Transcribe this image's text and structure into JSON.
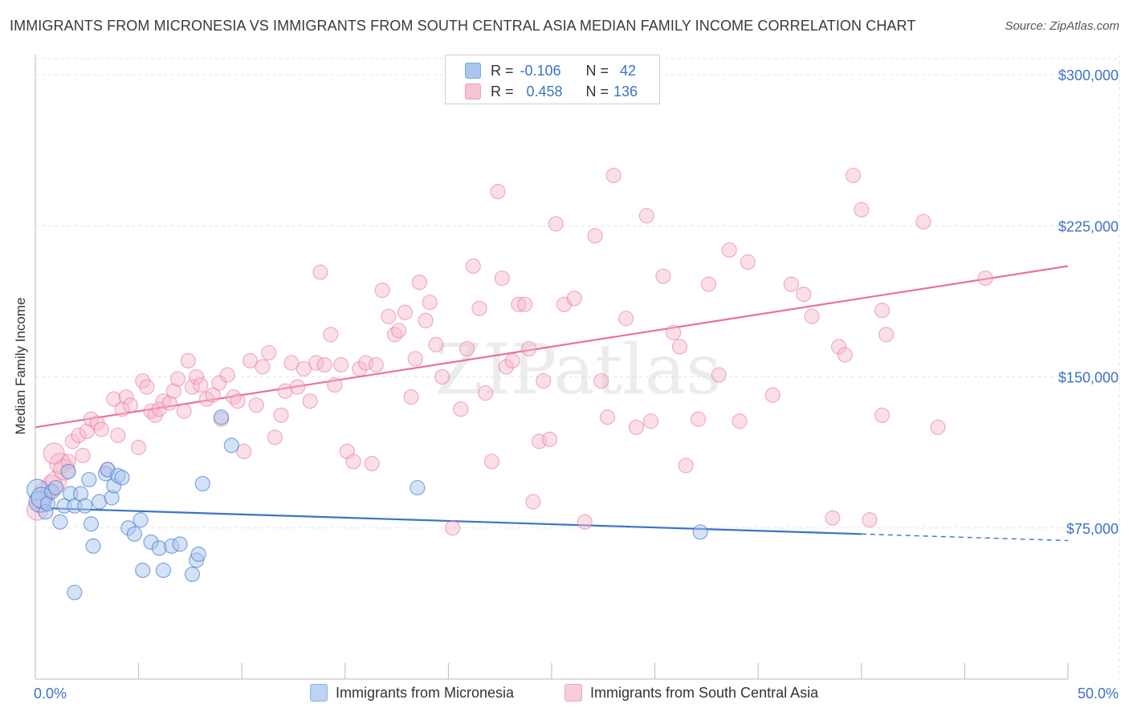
{
  "title": "IMMIGRANTS FROM MICRONESIA VS IMMIGRANTS FROM SOUTH CENTRAL ASIA MEDIAN FAMILY INCOME CORRELATION CHART",
  "source": "Source: ZipAtlas.com",
  "watermark": "ZIPatlas",
  "colors": {
    "blue": "#3b73c8",
    "blue_fill": "#a9c6ee",
    "pink": "#e8729a",
    "pink_fill": "#f6b9cb",
    "grid": "#e3e3e3"
  },
  "stats": {
    "blue": {
      "r_label": "R =",
      "r_value": "-0.106",
      "n_label": "N =",
      "n_value": "42"
    },
    "pink": {
      "r_label": "R =",
      "r_value": "0.458",
      "n_label": "N =",
      "n_value": "136"
    }
  },
  "legend": {
    "blue_label": "Immigrants from Micronesia",
    "pink_label": "Immigrants from South Central Asia"
  },
  "chart_data": {
    "type": "scatter",
    "title": "IMMIGRANTS FROM MICRONESIA VS IMMIGRANTS FROM SOUTH CENTRAL ASIA MEDIAN FAMILY INCOME CORRELATION CHART",
    "xlabel": "",
    "ylabel": "Median Family Income",
    "xlim": [
      0,
      50
    ],
    "ylim": [
      0,
      310000
    ],
    "x_tick_labels": [
      "0.0%",
      "50.0%"
    ],
    "y_ticks": [
      75000,
      150000,
      225000,
      300000
    ],
    "y_tick_labels": [
      "$75,000",
      "$150,000",
      "$225,000",
      "$300,000"
    ],
    "grid": true,
    "series": [
      {
        "name": "Immigrants from Micronesia",
        "color": "#3b73c8",
        "trend": {
          "x0": 0,
          "y0": 85000,
          "x1": 40,
          "y1": 72000,
          "dashed_to": 50
        },
        "points": [
          [
            0.1,
            94000
          ],
          [
            0.2,
            88000
          ],
          [
            0.3,
            90000
          ],
          [
            0.5,
            83000
          ],
          [
            0.6,
            87000
          ],
          [
            0.8,
            93000
          ],
          [
            1.0,
            95000
          ],
          [
            1.2,
            78000
          ],
          [
            1.4,
            86000
          ],
          [
            1.6,
            103000
          ],
          [
            1.7,
            92000
          ],
          [
            1.9,
            86000
          ],
          [
            2.2,
            92000
          ],
          [
            2.4,
            86000
          ],
          [
            2.6,
            99000
          ],
          [
            2.7,
            77000
          ],
          [
            2.8,
            66000
          ],
          [
            3.1,
            88000
          ],
          [
            3.4,
            102000
          ],
          [
            3.5,
            104000
          ],
          [
            3.7,
            90000
          ],
          [
            3.8,
            96000
          ],
          [
            4.0,
            101000
          ],
          [
            4.2,
            100000
          ],
          [
            4.5,
            75000
          ],
          [
            4.8,
            72000
          ],
          [
            5.1,
            79000
          ],
          [
            5.2,
            54000
          ],
          [
            5.6,
            68000
          ],
          [
            6.0,
            65000
          ],
          [
            6.2,
            54000
          ],
          [
            6.6,
            66000
          ],
          [
            7.0,
            67000
          ],
          [
            7.8,
            59000
          ],
          [
            7.9,
            62000
          ],
          [
            8.1,
            97000
          ],
          [
            9.0,
            130000
          ],
          [
            9.5,
            116000
          ],
          [
            7.6,
            52000
          ],
          [
            1.9,
            43000
          ],
          [
            18.5,
            95000
          ],
          [
            32.2,
            73000
          ]
        ]
      },
      {
        "name": "Immigrants from South Central Asia",
        "color": "#e8729a",
        "trend": {
          "x0": 0,
          "y0": 125000,
          "x1": 50,
          "y1": 205000
        },
        "points": [
          [
            0.1,
            84000
          ],
          [
            0.3,
            88000
          ],
          [
            0.5,
            93000
          ],
          [
            0.8,
            96000
          ],
          [
            1.0,
            98000
          ],
          [
            1.2,
            107000
          ],
          [
            1.4,
            104000
          ],
          [
            1.6,
            108000
          ],
          [
            1.8,
            118000
          ],
          [
            2.1,
            121000
          ],
          [
            2.3,
            111000
          ],
          [
            2.5,
            123000
          ],
          [
            2.7,
            129000
          ],
          [
            3.0,
            127000
          ],
          [
            3.2,
            124000
          ],
          [
            3.5,
            104000
          ],
          [
            3.8,
            139000
          ],
          [
            4.0,
            121000
          ],
          [
            4.2,
            134000
          ],
          [
            4.4,
            140000
          ],
          [
            4.6,
            136000
          ],
          [
            5.0,
            115000
          ],
          [
            5.2,
            148000
          ],
          [
            5.4,
            145000
          ],
          [
            5.6,
            133000
          ],
          [
            5.8,
            131000
          ],
          [
            6.0,
            134000
          ],
          [
            6.2,
            138000
          ],
          [
            6.5,
            137000
          ],
          [
            6.7,
            143000
          ],
          [
            6.9,
            149000
          ],
          [
            7.2,
            133000
          ],
          [
            7.4,
            158000
          ],
          [
            7.6,
            145000
          ],
          [
            7.8,
            150000
          ],
          [
            8.0,
            146000
          ],
          [
            8.3,
            139000
          ],
          [
            8.6,
            141000
          ],
          [
            8.9,
            147000
          ],
          [
            9.0,
            129000
          ],
          [
            9.3,
            151000
          ],
          [
            9.6,
            140000
          ],
          [
            9.8,
            138000
          ],
          [
            10.1,
            113000
          ],
          [
            10.4,
            158000
          ],
          [
            10.7,
            136000
          ],
          [
            11.0,
            155000
          ],
          [
            11.3,
            162000
          ],
          [
            11.6,
            120000
          ],
          [
            11.9,
            131000
          ],
          [
            12.1,
            143000
          ],
          [
            12.4,
            157000
          ],
          [
            12.7,
            145000
          ],
          [
            13.0,
            154000
          ],
          [
            13.3,
            138000
          ],
          [
            13.6,
            157000
          ],
          [
            13.8,
            202000
          ],
          [
            14.0,
            156000
          ],
          [
            14.3,
            171000
          ],
          [
            14.5,
            146000
          ],
          [
            14.8,
            156000
          ],
          [
            15.1,
            113000
          ],
          [
            15.4,
            108000
          ],
          [
            15.7,
            154000
          ],
          [
            16.0,
            157000
          ],
          [
            16.3,
            107000
          ],
          [
            16.5,
            156000
          ],
          [
            16.8,
            193000
          ],
          [
            17.1,
            180000
          ],
          [
            17.4,
            171000
          ],
          [
            17.6,
            173000
          ],
          [
            17.9,
            182000
          ],
          [
            18.2,
            140000
          ],
          [
            18.4,
            159000
          ],
          [
            18.6,
            197000
          ],
          [
            18.9,
            178000
          ],
          [
            19.1,
            187000
          ],
          [
            19.4,
            166000
          ],
          [
            19.7,
            150000
          ],
          [
            20.2,
            75000
          ],
          [
            20.6,
            134000
          ],
          [
            20.9,
            164000
          ],
          [
            21.2,
            205000
          ],
          [
            21.5,
            184000
          ],
          [
            21.8,
            142000
          ],
          [
            22.1,
            108000
          ],
          [
            22.4,
            242000
          ],
          [
            22.6,
            199000
          ],
          [
            22.8,
            155000
          ],
          [
            23.1,
            158000
          ],
          [
            23.4,
            186000
          ],
          [
            23.7,
            186000
          ],
          [
            23.9,
            164000
          ],
          [
            24.1,
            88000
          ],
          [
            24.4,
            118000
          ],
          [
            24.6,
            148000
          ],
          [
            24.9,
            119000
          ],
          [
            25.2,
            226000
          ],
          [
            25.6,
            186000
          ],
          [
            26.1,
            189000
          ],
          [
            26.6,
            78000
          ],
          [
            27.1,
            220000
          ],
          [
            27.4,
            148000
          ],
          [
            27.7,
            130000
          ],
          [
            28.0,
            250000
          ],
          [
            28.6,
            179000
          ],
          [
            29.1,
            125000
          ],
          [
            29.6,
            230000
          ],
          [
            29.8,
            128000
          ],
          [
            30.4,
            200000
          ],
          [
            30.9,
            172000
          ],
          [
            31.2,
            165000
          ],
          [
            31.5,
            106000
          ],
          [
            32.1,
            129000
          ],
          [
            32.6,
            196000
          ],
          [
            33.1,
            151000
          ],
          [
            33.6,
            213000
          ],
          [
            34.1,
            128000
          ],
          [
            34.5,
            207000
          ],
          [
            35.7,
            141000
          ],
          [
            36.6,
            196000
          ],
          [
            37.2,
            191000
          ],
          [
            37.6,
            180000
          ],
          [
            38.6,
            80000
          ],
          [
            38.9,
            165000
          ],
          [
            39.2,
            161000
          ],
          [
            39.6,
            250000
          ],
          [
            40.0,
            233000
          ],
          [
            40.4,
            79000
          ],
          [
            41.0,
            183000
          ],
          [
            41.2,
            171000
          ],
          [
            41.0,
            131000
          ],
          [
            43.0,
            227000
          ],
          [
            43.7,
            125000
          ],
          [
            46.0,
            199000
          ],
          [
            0.9,
            112000
          ]
        ]
      }
    ]
  }
}
